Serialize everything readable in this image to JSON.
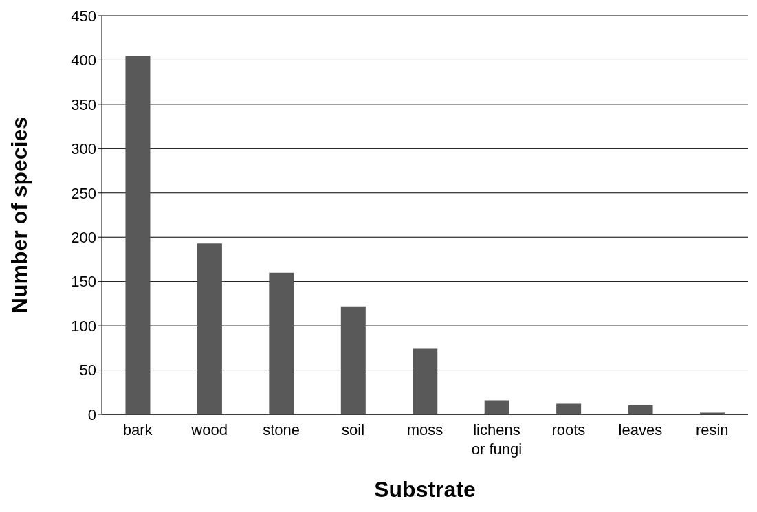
{
  "chart_data": {
    "type": "bar",
    "xlabel": "Substrate",
    "ylabel": "Number of species",
    "categories": [
      "bark",
      "wood",
      "stone",
      "soil",
      "moss",
      "lichens or fungi",
      "roots",
      "leaves",
      "resin"
    ],
    "values": [
      405,
      193,
      160,
      122,
      74,
      16,
      12,
      10,
      2
    ],
    "color": "#595959",
    "ylim": [
      0,
      450
    ],
    "yticks": [
      0,
      50,
      100,
      150,
      200,
      250,
      300,
      350,
      400,
      450
    ],
    "grid": "y",
    "legend": false
  }
}
